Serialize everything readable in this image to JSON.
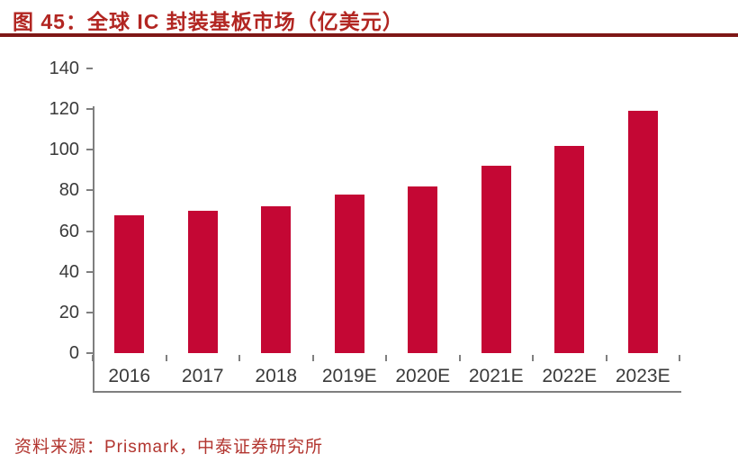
{
  "header": {
    "title": "图 45：全球 IC 封装基板市场（亿美元）"
  },
  "footer": {
    "source": "资料来源：Prismark，中泰证券研究所"
  },
  "colors": {
    "bar": "#C40734",
    "title_red": "#B22622",
    "rule_red": "#7E1716",
    "axis_gray": "#7F7F7F",
    "tick_label_gray": "#3A3A3A"
  },
  "chart_data": {
    "type": "bar",
    "title": "全球 IC 封装基板市场（亿美元）",
    "categories": [
      "2016",
      "2017",
      "2018",
      "2019E",
      "2020E",
      "2021E",
      "2022E",
      "2023E"
    ],
    "values": [
      68,
      70,
      72,
      78,
      82,
      92,
      102,
      119
    ],
    "xlabel": "",
    "ylabel": "",
    "ylim": [
      0,
      140
    ],
    "ytick_step": 20,
    "ytick_labels": [
      "0",
      "20",
      "40",
      "60",
      "80",
      "100",
      "120",
      "140"
    ],
    "grid": false,
    "legend": "none",
    "bar_color": "#C40734"
  }
}
